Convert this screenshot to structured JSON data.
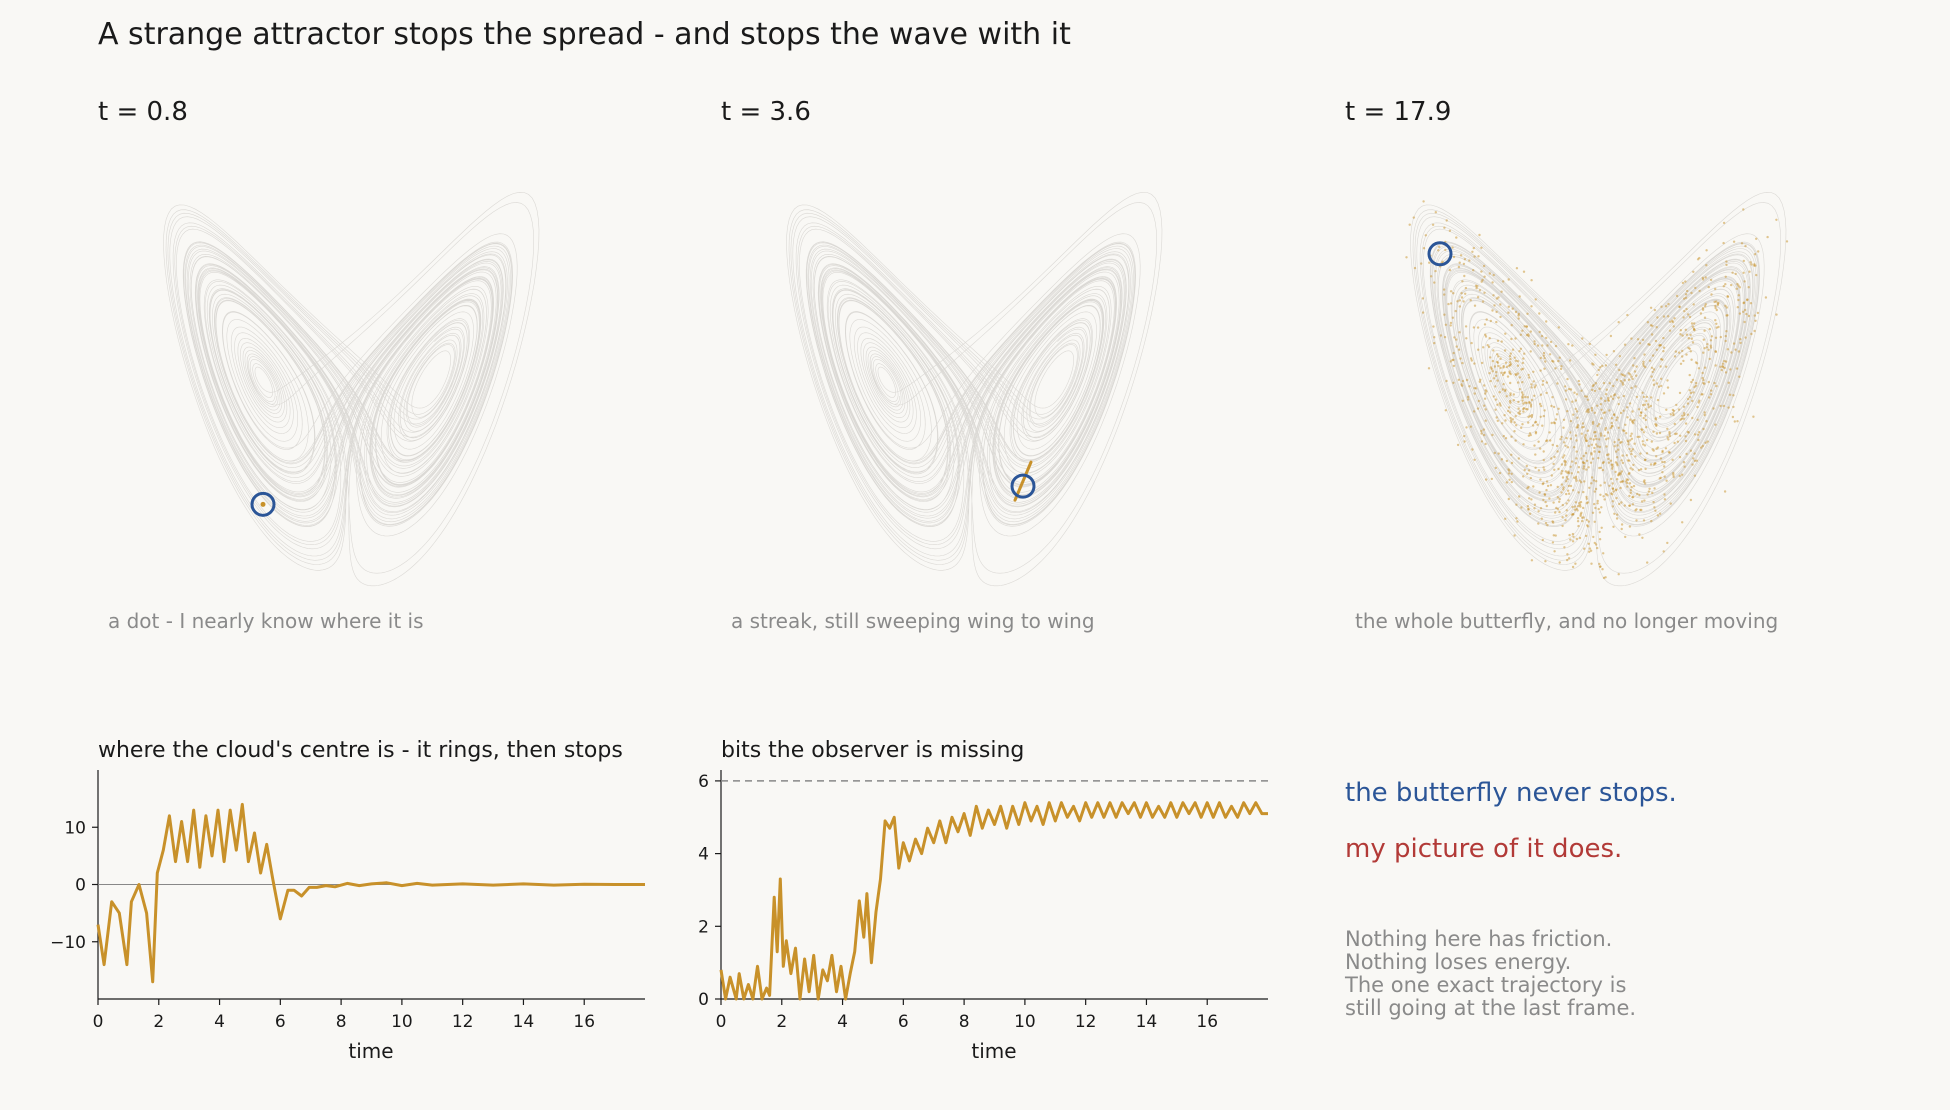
{
  "title": "A strange attractor stops the spread - and stops the wave with it",
  "colors": {
    "background": "#f9f8f5",
    "attractor": "#cfccc8",
    "cloud": "#c8912a",
    "marker": "#2b5597",
    "red_text": "#b23a37",
    "muted_text": "#8a8a8a",
    "text": "#1a1a1a"
  },
  "panels": [
    {
      "time_label": "t = 0.8",
      "caption": "a dot - I nearly know where it is",
      "cloud": "dot"
    },
    {
      "time_label": "t = 3.6",
      "caption": "a streak, still sweeping wing to wing",
      "cloud": "streak"
    },
    {
      "time_label": "t = 17.9",
      "caption": "the whole butterfly, and no longer moving",
      "cloud": "spread"
    }
  ],
  "notes": {
    "blue_line": "the butterfly never stops.",
    "red_line": "my picture of it does.",
    "paragraph": [
      "Nothing here has friction.",
      "Nothing loses energy.",
      "The one exact trajectory is",
      "still going at the last frame."
    ]
  },
  "chart_data": [
    {
      "type": "line",
      "title": "where the cloud's centre is - it rings, then stops",
      "xlabel": "time",
      "ylabel": "",
      "xlim": [
        0,
        18
      ],
      "ylim": [
        -20,
        20
      ],
      "xticks": [
        0,
        2,
        4,
        6,
        8,
        10,
        12,
        14,
        16
      ],
      "yticks": [
        -10,
        0,
        10
      ],
      "ytick_labels": [
        "−10",
        "0",
        "10"
      ],
      "zero_line": true,
      "series": [
        {
          "x": [
            0,
            0.2,
            0.45,
            0.7,
            0.95,
            1.1,
            1.35,
            1.6,
            1.8,
            1.95,
            2.15,
            2.35,
            2.55,
            2.75,
            2.95,
            3.15,
            3.35,
            3.55,
            3.75,
            3.95,
            4.15,
            4.35,
            4.55,
            4.75,
            4.95,
            5.15,
            5.35,
            5.55,
            5.75,
            6.0,
            6.25,
            6.45,
            6.7,
            6.95,
            7.2,
            7.5,
            7.8,
            8.2,
            8.6,
            9.0,
            9.5,
            10.0,
            10.5,
            11.0,
            12.0,
            13.0,
            14.0,
            15.0,
            16.0,
            17.0,
            18.0
          ],
          "y": [
            -7,
            -14,
            -3,
            -5,
            -14,
            -3,
            0,
            -5,
            -17,
            2,
            6,
            12,
            4,
            11,
            4,
            13,
            3,
            12,
            5,
            13,
            4,
            13,
            6,
            14,
            4,
            9,
            2,
            7,
            1,
            -6,
            -1,
            -1,
            -2,
            -0.5,
            -0.5,
            -0.2,
            -0.4,
            0.2,
            -0.2,
            0.1,
            0.3,
            -0.2,
            0.2,
            -0.1,
            0.1,
            -0.1,
            0.1,
            -0.1,
            0.05,
            0,
            0
          ]
        }
      ]
    },
    {
      "type": "line",
      "title": "bits the observer is missing",
      "xlabel": "time",
      "ylabel": "",
      "xlim": [
        0,
        18
      ],
      "ylim": [
        0,
        6.3
      ],
      "xticks": [
        0,
        2,
        4,
        6,
        8,
        10,
        12,
        14,
        16
      ],
      "yticks": [
        0,
        2,
        4,
        6
      ],
      "ytick_labels": [
        "0",
        "2",
        "4",
        "6"
      ],
      "reference_line": 6,
      "series": [
        {
          "x": [
            0,
            0.15,
            0.3,
            0.5,
            0.6,
            0.75,
            0.9,
            1.05,
            1.2,
            1.35,
            1.5,
            1.6,
            1.75,
            1.85,
            1.95,
            2.05,
            2.15,
            2.3,
            2.45,
            2.6,
            2.75,
            2.9,
            3.05,
            3.2,
            3.35,
            3.5,
            3.65,
            3.8,
            3.95,
            4.1,
            4.25,
            4.4,
            4.55,
            4.7,
            4.8,
            4.95,
            5.1,
            5.25,
            5.4,
            5.55,
            5.7,
            5.85,
            6.0,
            6.2,
            6.4,
            6.6,
            6.8,
            7.0,
            7.2,
            7.4,
            7.6,
            7.8,
            8.0,
            8.2,
            8.4,
            8.6,
            8.8,
            9.0,
            9.2,
            9.4,
            9.6,
            9.8,
            10.0,
            10.2,
            10.4,
            10.6,
            10.8,
            11.0,
            11.2,
            11.4,
            11.6,
            11.8,
            12.0,
            12.2,
            12.4,
            12.6,
            12.8,
            13.0,
            13.2,
            13.4,
            13.6,
            13.8,
            14.0,
            14.2,
            14.4,
            14.6,
            14.8,
            15.0,
            15.2,
            15.4,
            15.6,
            15.8,
            16.0,
            16.2,
            16.4,
            16.6,
            16.8,
            17.0,
            17.2,
            17.4,
            17.6,
            17.8,
            18.0
          ],
          "y": [
            0.8,
            0,
            0.6,
            0,
            0.7,
            0,
            0.4,
            0,
            0.9,
            0,
            0.3,
            0.1,
            2.8,
            1.3,
            3.3,
            0.9,
            1.6,
            0.7,
            1.4,
            0,
            1.1,
            0.2,
            1.2,
            0,
            0.8,
            0.5,
            1.2,
            0.2,
            0.9,
            0,
            0.7,
            1.3,
            2.7,
            1.7,
            2.9,
            1.0,
            2.4,
            3.3,
            4.9,
            4.7,
            5.0,
            3.6,
            4.3,
            3.8,
            4.4,
            4.0,
            4.7,
            4.3,
            4.9,
            4.3,
            5.0,
            4.6,
            5.1,
            4.5,
            5.3,
            4.7,
            5.2,
            4.8,
            5.3,
            4.7,
            5.3,
            4.8,
            5.4,
            4.9,
            5.3,
            4.8,
            5.4,
            4.9,
            5.4,
            5.0,
            5.3,
            4.9,
            5.4,
            5.0,
            5.4,
            5.0,
            5.4,
            5.0,
            5.4,
            5.1,
            5.4,
            5.0,
            5.4,
            5.0,
            5.3,
            5.0,
            5.4,
            5.0,
            5.4,
            5.1,
            5.4,
            5.0,
            5.4,
            5.0,
            5.4,
            5.0,
            5.3,
            5.0,
            5.4,
            5.1,
            5.4,
            5.1,
            5.1
          ]
        }
      ]
    }
  ]
}
